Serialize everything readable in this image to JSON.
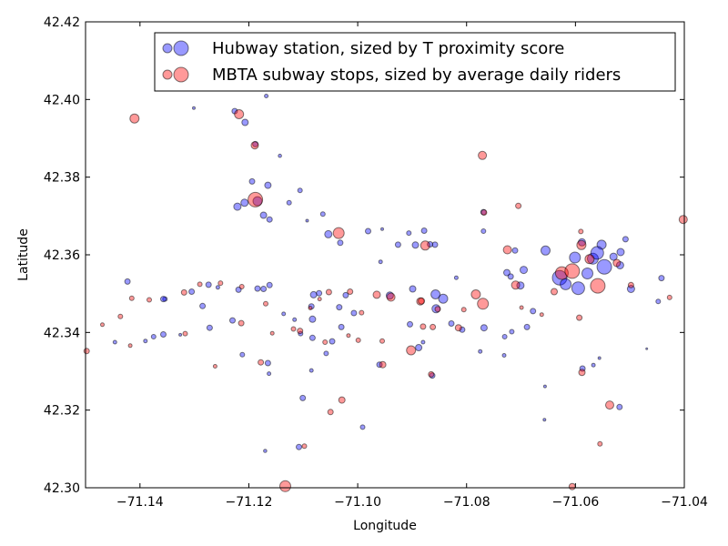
{
  "chart_data": {
    "type": "scatter",
    "xlabel": "Longitude",
    "ylabel": "Latitude",
    "xlim": [
      -71.15,
      -71.04
    ],
    "ylim": [
      42.3,
      42.42
    ],
    "xticks": [
      -71.14,
      -71.12,
      -71.1,
      -71.08,
      -71.06,
      -71.04
    ],
    "xtick_labels": [
      "−71.14",
      "−71.12",
      "−71.10",
      "−71.08",
      "−71.06",
      "−71.04"
    ],
    "yticks": [
      42.3,
      42.32,
      42.34,
      42.36,
      42.38,
      42.4,
      42.42
    ],
    "ytick_labels": [
      "42.30",
      "42.32",
      "42.34",
      "42.36",
      "42.38",
      "42.40",
      "42.42"
    ],
    "grid": false,
    "legend_position": "top-right",
    "series": [
      {
        "name": "Hubway station, sized by T proximity score",
        "color": "#0000ff",
        "alpha": 0.4,
        "points": [
          [
            -71.1301,
            42.3978,
            1.5
          ],
          [
            -71.1226,
            42.397,
            3
          ],
          [
            -71.1207,
            42.3941,
            3.5
          ],
          [
            -71.1168,
            42.4009,
            2
          ],
          [
            -71.1143,
            42.3855,
            1.8
          ],
          [
            -71.1188,
            42.3885,
            3
          ],
          [
            -71.1194,
            42.3789,
            3
          ],
          [
            -71.1165,
            42.3779,
            3.5
          ],
          [
            -71.1221,
            42.3724,
            4
          ],
          [
            -71.1208,
            42.3734,
            4
          ],
          [
            -71.1184,
            42.3738,
            5
          ],
          [
            -71.1173,
            42.3702,
            3.5
          ],
          [
            -71.1162,
            42.3691,
            3
          ],
          [
            -71.1093,
            42.3688,
            1.5
          ],
          [
            -71.1106,
            42.3766,
            2.5
          ],
          [
            -71.1126,
            42.3734,
            2.5
          ],
          [
            -71.1064,
            42.3705,
            2.5
          ],
          [
            -71.1054,
            42.3653,
            4
          ],
          [
            -71.1032,
            42.3631,
            3
          ],
          [
            -71.0981,
            42.3661,
            3
          ],
          [
            -71.0955,
            42.3666,
            1.5
          ],
          [
            -71.0906,
            42.3656,
            2.5
          ],
          [
            -71.0926,
            42.3626,
            3
          ],
          [
            -71.0894,
            42.3625,
            3.5
          ],
          [
            -71.0858,
            42.3626,
            3
          ],
          [
            -71.0878,
            42.3662,
            3
          ],
          [
            -71.0867,
            42.3627,
            3
          ],
          [
            -71.0769,
            42.3661,
            2.5
          ],
          [
            -71.0769,
            42.371,
            3
          ],
          [
            -71.0726,
            42.3554,
            3.5
          ],
          [
            -71.0711,
            42.3611,
            3
          ],
          [
            -71.0695,
            42.3561,
            4
          ],
          [
            -71.0701,
            42.3521,
            4
          ],
          [
            -71.0719,
            42.3544,
            3
          ],
          [
            -71.0655,
            42.3611,
            5
          ],
          [
            -71.0629,
            42.3541,
            8
          ],
          [
            -71.0618,
            42.3524,
            6
          ],
          [
            -71.0601,
            42.3593,
            6
          ],
          [
            -71.0588,
            42.3632,
            4
          ],
          [
            -71.0568,
            42.359,
            6
          ],
          [
            -71.0552,
            42.3626,
            5
          ],
          [
            -71.0547,
            42.3569,
            8
          ],
          [
            -71.056,
            42.3605,
            7
          ],
          [
            -71.0595,
            42.3514,
            7
          ],
          [
            -71.0578,
            42.3552,
            6
          ],
          [
            -71.053,
            42.3595,
            4
          ],
          [
            -71.0517,
            42.3607,
            4
          ],
          [
            -71.0518,
            42.3573,
            4
          ],
          [
            -71.0508,
            42.364,
            3
          ],
          [
            -71.0498,
            42.3512,
            4
          ],
          [
            -71.0519,
            42.3208,
            3
          ],
          [
            -71.0587,
            42.3307,
            3
          ],
          [
            -71.0567,
            42.3316,
            2
          ],
          [
            -71.0556,
            42.3334,
            1.5
          ],
          [
            -71.0656,
            42.3261,
            1.5
          ],
          [
            -71.0657,
            42.3175,
            1.5
          ],
          [
            -71.0678,
            42.3455,
            3
          ],
          [
            -71.0689,
            42.3414,
            3
          ],
          [
            -71.0717,
            42.3402,
            2.5
          ],
          [
            -71.073,
            42.3389,
            2.5
          ],
          [
            -71.0731,
            42.3341,
            2
          ],
          [
            -71.0768,
            42.3412,
            3.5
          ],
          [
            -71.0775,
            42.3351,
            2
          ],
          [
            -71.0808,
            42.3407,
            3
          ],
          [
            -71.0828,
            42.3423,
            3
          ],
          [
            -71.0843,
            42.3487,
            5
          ],
          [
            -71.0856,
            42.3461,
            4.5
          ],
          [
            -71.0857,
            42.3498,
            5
          ],
          [
            -71.088,
            42.3375,
            2
          ],
          [
            -71.0863,
            42.3289,
            3
          ],
          [
            -71.0904,
            42.3421,
            3
          ],
          [
            -71.0888,
            42.3361,
            3.5
          ],
          [
            -71.0899,
            42.3512,
            3.5
          ],
          [
            -71.0941,
            42.3495,
            4
          ],
          [
            -71.096,
            42.3317,
            3
          ],
          [
            -71.0991,
            42.3156,
            2.5
          ],
          [
            -71.1007,
            42.345,
            3
          ],
          [
            -71.1034,
            42.3465,
            3
          ],
          [
            -71.1022,
            42.3496,
            3
          ],
          [
            -71.103,
            42.3414,
            3
          ],
          [
            -71.1047,
            42.3377,
            3
          ],
          [
            -71.1058,
            42.3346,
            2.5
          ],
          [
            -71.1083,
            42.3386,
            3
          ],
          [
            -71.1083,
            42.3434,
            3.5
          ],
          [
            -71.1085,
            42.3467,
            3
          ],
          [
            -71.1071,
            42.3501,
            3
          ],
          [
            -71.1081,
            42.3497,
            3.5
          ],
          [
            -71.1085,
            42.3302,
            2
          ],
          [
            -71.1101,
            42.3231,
            3
          ],
          [
            -71.1105,
            42.3397,
            2.5
          ],
          [
            -71.1116,
            42.3433,
            2
          ],
          [
            -71.1136,
            42.3448,
            2
          ],
          [
            -71.1162,
            42.3522,
            3
          ],
          [
            -71.1173,
            42.3512,
            3
          ],
          [
            -71.1184,
            42.3513,
            3
          ],
          [
            -71.1219,
            42.351,
            3
          ],
          [
            -71.123,
            42.3431,
            3
          ],
          [
            -71.1272,
            42.3412,
            3
          ],
          [
            -71.1257,
            42.3516,
            2
          ],
          [
            -71.1274,
            42.3523,
            3
          ],
          [
            -71.1326,
            42.3394,
            1.5
          ],
          [
            -71.1357,
            42.3395,
            3
          ],
          [
            -71.1375,
            42.3389,
            2.5
          ],
          [
            -71.139,
            42.3378,
            2
          ],
          [
            -71.1446,
            42.3375,
            2
          ],
          [
            -71.1423,
            42.3531,
            3
          ],
          [
            -71.1354,
            42.3486,
            2.5
          ],
          [
            -71.1357,
            42.3486,
            3
          ],
          [
            -71.1305,
            42.3505,
            3
          ],
          [
            -71.1285,
            42.3468,
            3
          ],
          [
            -71.1212,
            42.3343,
            2.5
          ],
          [
            -71.1165,
            42.3321,
            3
          ],
          [
            -71.1163,
            42.3294,
            2
          ],
          [
            -71.117,
            42.3095,
            1.8
          ],
          [
            -71.1108,
            42.3105,
            3
          ],
          [
            -71.0958,
            42.3582,
            2
          ],
          [
            -71.0819,
            42.3541,
            2
          ],
          [
            -71.0448,
            42.348,
            2.5
          ],
          [
            -71.0442,
            42.354,
            3
          ],
          [
            -71.0469,
            42.3358,
            1
          ]
        ]
      },
      {
        "name": "MBTA subway stops, sized by average daily riders",
        "color": "#ff0000",
        "alpha": 0.4,
        "points": [
          [
            -71.141,
            42.3951,
            5
          ],
          [
            -71.1218,
            42.3962,
            5
          ],
          [
            -71.1189,
            42.3882,
            4
          ],
          [
            -71.1188,
            42.3742,
            8
          ],
          [
            -71.1035,
            42.3656,
            6
          ],
          [
            -71.1029,
            42.3226,
            3.5
          ],
          [
            -71.105,
            42.3195,
            3
          ],
          [
            -71.1098,
            42.3107,
            2.5
          ],
          [
            -71.1133,
            42.3004,
            6
          ],
          [
            -71.1252,
            42.3527,
            2.5
          ],
          [
            -71.1214,
            42.3424,
            3
          ],
          [
            -71.1178,
            42.3323,
            3
          ],
          [
            -71.1262,
            42.3313,
            2
          ],
          [
            -71.1319,
            42.3503,
            3
          ],
          [
            -71.1383,
            42.3484,
            2.5
          ],
          [
            -71.1415,
            42.3488,
            2.5
          ],
          [
            -71.1436,
            42.3441,
            2.5
          ],
          [
            -71.1469,
            42.342,
            2
          ],
          [
            -71.1498,
            42.3352,
            3
          ],
          [
            -71.1418,
            42.3366,
            2
          ],
          [
            -71.1157,
            42.3398,
            2
          ],
          [
            -71.1118,
            42.3409,
            2.5
          ],
          [
            -71.106,
            42.3375,
            2.5
          ],
          [
            -71.1017,
            42.3392,
            2
          ],
          [
            -71.0999,
            42.338,
            2.5
          ],
          [
            -71.0954,
            42.3317,
            3.5
          ],
          [
            -71.0902,
            42.3354,
            5
          ],
          [
            -71.0885,
            42.348,
            4
          ],
          [
            -71.0939,
            42.3491,
            4.5
          ],
          [
            -71.0862,
            42.3414,
            3
          ],
          [
            -71.0853,
            42.346,
            3
          ],
          [
            -71.0876,
            42.3624,
            5
          ],
          [
            -71.0865,
            42.3292,
            3
          ],
          [
            -71.0771,
            42.3856,
            4.5
          ],
          [
            -71.0783,
            42.3498,
            5
          ],
          [
            -71.077,
            42.3474,
            6
          ],
          [
            -71.0768,
            42.3709,
            3
          ],
          [
            -71.0705,
            42.3726,
            3
          ],
          [
            -71.0725,
            42.3613,
            4.5
          ],
          [
            -71.071,
            42.3522,
            4.5
          ],
          [
            -71.0662,
            42.3446,
            2
          ],
          [
            -71.0639,
            42.3505,
            3.5
          ],
          [
            -71.0625,
            42.3553,
            7
          ],
          [
            -71.0606,
            42.3558,
            8
          ],
          [
            -71.0589,
            42.3625,
            5
          ],
          [
            -71.0574,
            42.3589,
            5
          ],
          [
            -71.0559,
            42.352,
            8
          ],
          [
            -71.0588,
            42.3297,
            3.5
          ],
          [
            -71.0606,
            42.3003,
            3.5
          ],
          [
            -71.059,
            42.366,
            2.5
          ],
          [
            -71.0524,
            42.3579,
            4
          ],
          [
            -71.0537,
            42.3213,
            4.5
          ],
          [
            -71.0555,
            42.3113,
            2.5
          ],
          [
            -71.0498,
            42.3522,
            3
          ],
          [
            -71.0427,
            42.349,
            2.5
          ],
          [
            -71.0402,
            42.3691,
            4.5
          ],
          [
            -71.0593,
            42.3438,
            3
          ],
          [
            -71.0699,
            42.3464,
            2
          ],
          [
            -71.0805,
            42.3459,
            2.5
          ],
          [
            -71.0815,
            42.3412,
            3.5
          ],
          [
            -71.0883,
            42.3481,
            3.5
          ],
          [
            -71.0955,
            42.3378,
            2.5
          ],
          [
            -71.0993,
            42.3451,
            2.5
          ],
          [
            -71.1014,
            42.3505,
            3
          ],
          [
            -71.1053,
            42.3504,
            3
          ],
          [
            -71.107,
            42.3486,
            2
          ],
          [
            -71.1087,
            42.3463,
            2
          ],
          [
            -71.1106,
            42.3404,
            3
          ],
          [
            -71.1169,
            42.3474,
            2.5
          ],
          [
            -71.1213,
            42.3518,
            2.5
          ],
          [
            -71.129,
            42.3524,
            2.5
          ],
          [
            -71.1317,
            42.3397,
            2.5
          ],
          [
            -71.0965,
            42.3497,
            4
          ],
          [
            -71.088,
            42.3415,
            3
          ]
        ]
      }
    ]
  }
}
